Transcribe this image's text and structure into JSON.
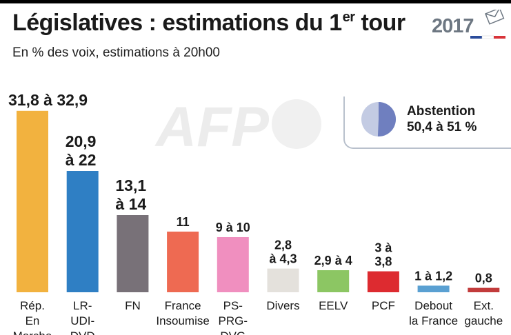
{
  "header": {
    "title_main": "Législatives :  estimations du 1",
    "title_sup": "er",
    "title_end": " tour",
    "subtitle": "En % des voix, estimations à 20h00",
    "logo_year": "2017"
  },
  "abstention": {
    "label": "Abstention",
    "value": "50,4 à 51 %",
    "range": [
      50.4,
      51
    ],
    "colors": {
      "light": "#c3cbe3",
      "dark": "#6f7fbf"
    }
  },
  "watermark": "AFP",
  "chart_data": {
    "type": "bar",
    "title": "Législatives :  estimations du 1er tour",
    "subtitle": "En % des voix, estimations à 20h00",
    "categories": [
      [
        "Rép.",
        "En",
        "Marche"
      ],
      [
        "LR-",
        "UDI-",
        "DVD"
      ],
      [
        "FN"
      ],
      [
        "France",
        "Insoumise"
      ],
      [
        "PS-",
        "PRG-",
        "DVG"
      ],
      [
        "Divers"
      ],
      [
        "EELV"
      ],
      [
        "PCF"
      ],
      [
        "Debout",
        "la France"
      ],
      [
        "Ext.",
        "gauche"
      ]
    ],
    "value_labels": [
      [
        "31,8 à 32,9"
      ],
      [
        "20,9",
        "à 22"
      ],
      [
        "13,1",
        "à 14"
      ],
      [
        "11"
      ],
      [
        "9 à 10"
      ],
      [
        "2,8",
        "à 4,3"
      ],
      [
        "2,9 à 4"
      ],
      [
        "3 à",
        "3,8"
      ],
      [
        "1 à 1,2"
      ],
      [
        "0,8"
      ]
    ],
    "values_low": [
      31.8,
      20.9,
      13.1,
      11,
      9,
      2.8,
      2.9,
      3,
      1,
      0.8
    ],
    "values_high": [
      32.9,
      22,
      14,
      11,
      10,
      4.3,
      4,
      3.8,
      1.2,
      0.8
    ],
    "colors": [
      "#f2b23f",
      "#2f7fc4",
      "#787178",
      "#ee6a52",
      "#f08fbf",
      "#e4e1dc",
      "#8cc663",
      "#dd2b30",
      "#5aa0d2",
      "#c23b3b"
    ],
    "ylim": [
      0,
      33
    ],
    "grid": false,
    "legend": "none"
  }
}
